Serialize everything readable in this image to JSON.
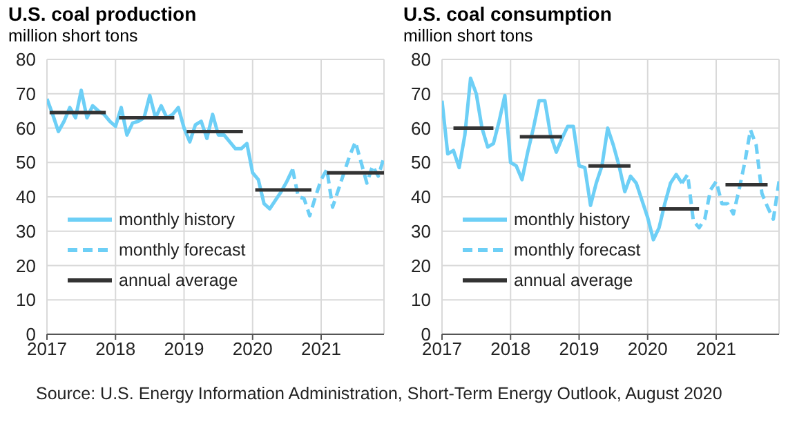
{
  "chart_data": [
    {
      "type": "line",
      "title": "U.S. coal production",
      "subtitle": "million short tons",
      "xlim": [
        "2017-01",
        "2021-12"
      ],
      "xticks": [
        "2017",
        "2018",
        "2019",
        "2020",
        "2021"
      ],
      "ylim": [
        0,
        80
      ],
      "yticks": [
        0,
        10,
        20,
        30,
        40,
        50,
        60,
        70,
        80
      ],
      "grid": true,
      "legend": "bottom left",
      "annotations": [
        "Source: U.S. Energy Information Administration, Short-Term Energy Outlook, August 2020"
      ],
      "series": [
        {
          "name": "monthly history",
          "color": "#6dcff6",
          "line_style": "solid",
          "x": [
            "2017-01",
            "2017-02",
            "2017-03",
            "2017-04",
            "2017-05",
            "2017-06",
            "2017-07",
            "2017-08",
            "2017-09",
            "2017-10",
            "2017-11",
            "2017-12",
            "2018-01",
            "2018-02",
            "2018-03",
            "2018-04",
            "2018-05",
            "2018-06",
            "2018-07",
            "2018-08",
            "2018-09",
            "2018-10",
            "2018-11",
            "2018-12",
            "2019-01",
            "2019-02",
            "2019-03",
            "2019-04",
            "2019-05",
            "2019-06",
            "2019-07",
            "2019-08",
            "2019-09",
            "2019-10",
            "2019-11",
            "2019-12",
            "2020-01",
            "2020-02",
            "2020-03",
            "2020-04",
            "2020-05",
            "2020-06",
            "2020-07",
            "2020-08"
          ],
          "values": [
            68.5,
            64,
            59,
            62,
            66,
            63,
            71,
            63,
            66.5,
            65,
            64,
            62,
            60.5,
            66,
            58,
            61.5,
            62,
            63,
            69.5,
            63,
            66.5,
            63,
            64,
            66,
            60,
            56,
            61,
            62,
            57,
            64,
            58,
            58,
            56,
            54,
            54,
            55.5,
            47,
            45,
            38,
            36.5,
            39,
            41.5,
            44.5,
            48
          ]
        },
        {
          "name": "monthly forecast",
          "color": "#6dcff6",
          "line_style": "dashed",
          "x": [
            "2020-08",
            "2020-09",
            "2020-10",
            "2020-11",
            "2020-12",
            "2021-01",
            "2021-02",
            "2021-03",
            "2021-04",
            "2021-05",
            "2021-06",
            "2021-07",
            "2021-08",
            "2021-09",
            "2021-10",
            "2021-11",
            "2021-12"
          ],
          "values": [
            48,
            40,
            39.5,
            34.5,
            40,
            45,
            48,
            37,
            42,
            47,
            52,
            56,
            50,
            44,
            49,
            46,
            51.5
          ]
        },
        {
          "name": "annual average",
          "color": "#333333",
          "line_style": "solid",
          "x": [
            "2017-01-15",
            "2017-11-10",
            "2017-12",
            "2018-01-20",
            "2018-11-10",
            "2018-12",
            "2019-01-15",
            "2019-11-10",
            "2019-12",
            "2020-01-15",
            "2020-11-10",
            "2020-12",
            "2021-02-01",
            "2021-12"
          ],
          "values": [
            64.5,
            64.5,
            null,
            63,
            63,
            null,
            59,
            59,
            null,
            42,
            42,
            null,
            47,
            47
          ]
        }
      ]
    },
    {
      "type": "line",
      "title": "U.S. coal consumption",
      "subtitle": "million short tons",
      "xlim": [
        "2017-01",
        "2021-12"
      ],
      "xticks": [
        "2017",
        "2018",
        "2019",
        "2020",
        "2021"
      ],
      "ylim": [
        0,
        80
      ],
      "yticks": [
        0,
        10,
        20,
        30,
        40,
        50,
        60,
        70,
        80
      ],
      "grid": true,
      "legend": "bottom left",
      "series": [
        {
          "name": "monthly history",
          "color": "#6dcff6",
          "line_style": "solid",
          "x": [
            "2017-01",
            "2017-02",
            "2017-03",
            "2017-04",
            "2017-05",
            "2017-06",
            "2017-07",
            "2017-08",
            "2017-09",
            "2017-10",
            "2017-11",
            "2017-12",
            "2018-01",
            "2018-02",
            "2018-03",
            "2018-04",
            "2018-05",
            "2018-06",
            "2018-07",
            "2018-08",
            "2018-09",
            "2018-10",
            "2018-11",
            "2018-12",
            "2019-01",
            "2019-02",
            "2019-03",
            "2019-04",
            "2019-05",
            "2019-06",
            "2019-07",
            "2019-08",
            "2019-09",
            "2019-10",
            "2019-11",
            "2019-12",
            "2020-01",
            "2020-02",
            "2020-03",
            "2020-04",
            "2020-05",
            "2020-06",
            "2020-07"
          ],
          "values": [
            68,
            52.5,
            53.5,
            48.5,
            58,
            74.5,
            70,
            60,
            54.5,
            55.5,
            62,
            69.5,
            50,
            49,
            45,
            53,
            60,
            68,
            68,
            58,
            53,
            57,
            60.5,
            60.5,
            49,
            48.5,
            37.5,
            44,
            49,
            60,
            55,
            49,
            41.5,
            46,
            44,
            39,
            34,
            27.5,
            31,
            38,
            44,
            46.5,
            44
          ]
        },
        {
          "name": "monthly forecast",
          "color": "#6dcff6",
          "line_style": "dashed",
          "x": [
            "2020-07",
            "2020-08",
            "2020-09",
            "2020-10",
            "2020-11",
            "2020-12",
            "2021-01",
            "2021-02",
            "2021-03",
            "2021-04",
            "2021-05",
            "2021-06",
            "2021-07",
            "2021-08",
            "2021-09",
            "2021-10",
            "2021-11",
            "2021-12"
          ],
          "values": [
            44,
            46.5,
            33,
            31,
            33.5,
            42,
            44.5,
            38,
            38,
            35,
            42,
            50,
            59.5,
            55,
            41,
            37,
            33.5,
            44.5
          ]
        },
        {
          "name": "annual average",
          "color": "#333333",
          "line_style": "solid",
          "x": [
            "2017-03",
            "2017-10",
            "2017-12",
            "2018-02-20",
            "2018-10",
            "2018-12",
            "2019-02-20",
            "2019-10",
            "2019-12",
            "2020-03",
            "2020-10",
            "2020-12",
            "2021-02-20",
            "2021-10"
          ],
          "values": [
            60,
            60,
            null,
            57.5,
            57.5,
            null,
            49,
            49,
            null,
            36.5,
            36.5,
            null,
            43.5,
            43.5
          ]
        }
      ]
    }
  ]
}
